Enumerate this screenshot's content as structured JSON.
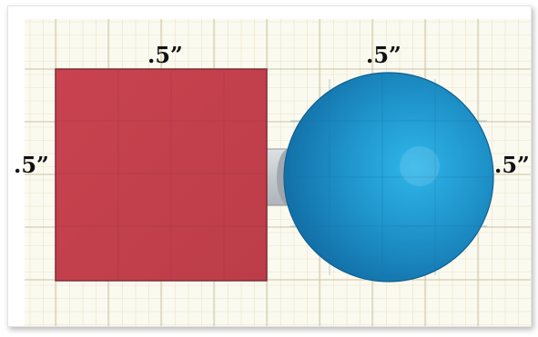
{
  "colors": {
    "grid_background": "#fbfaf0",
    "grid_line": "#e9e3c8",
    "grid_line_major": "#c9c1a2",
    "square_fill": "#c3414d",
    "square_stroke": "#7d2c36",
    "sphere_light": "#2fb6ea",
    "sphere_dark": "#1370a8",
    "connector_fill": "#c9ced2"
  },
  "dimensions": {
    "square_top": ".5”",
    "square_left": ".5”",
    "sphere_top": ".5”",
    "sphere_right": ".5”"
  }
}
